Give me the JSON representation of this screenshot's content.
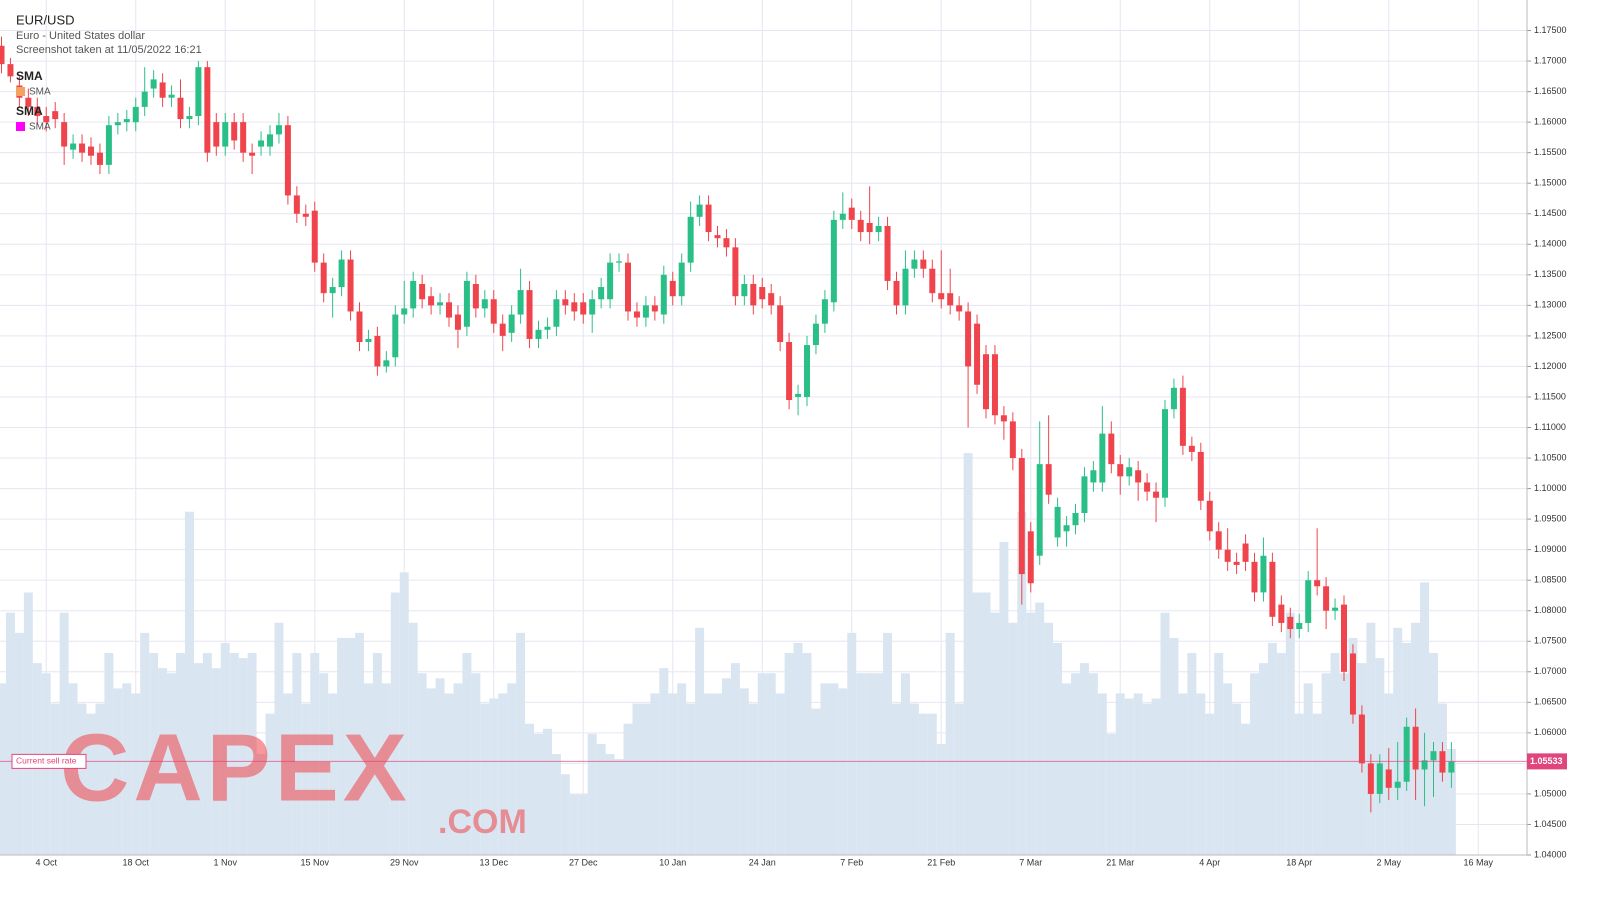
{
  "header": {
    "title": "EUR/USD",
    "subtitle": "Euro - United States dollar",
    "note": "Screenshot taken at 11/05/2022 16:21"
  },
  "indicators": [
    {
      "name": "SMA",
      "label": "SMA",
      "color": "#f4a261"
    },
    {
      "name": "SMA",
      "label": "SMA",
      "color": "#ff00ff"
    }
  ],
  "watermark": {
    "name": "CAPEX",
    "domain": ".COM"
  },
  "chart_data": {
    "type": "candlestick",
    "categories": [
      null,
      null,
      null,
      null,
      null,
      "4 Oct",
      null,
      null,
      null,
      null,
      null,
      null,
      null,
      null,
      null,
      "18 Oct",
      null,
      null,
      null,
      null,
      null,
      null,
      null,
      null,
      null,
      "1 Nov",
      null,
      null,
      null,
      null,
      null,
      null,
      null,
      null,
      null,
      "15 Nov",
      null,
      null,
      null,
      null,
      null,
      null,
      null,
      null,
      null,
      "29 Nov",
      null,
      null,
      null,
      null,
      null,
      null,
      null,
      null,
      null,
      "13 Dec",
      null,
      null,
      null,
      null,
      null,
      null,
      null,
      null,
      null,
      "27 Dec",
      null,
      null,
      null,
      null,
      null,
      null,
      null,
      null,
      null,
      "10 Jan",
      null,
      null,
      null,
      null,
      null,
      null,
      null,
      null,
      null,
      "24 Jan",
      null,
      null,
      null,
      null,
      null,
      null,
      null,
      null,
      null,
      "7 Feb",
      null,
      null,
      null,
      null,
      null,
      null,
      null,
      null,
      null,
      "21 Feb",
      null,
      null,
      null,
      null,
      null,
      null,
      null,
      null,
      null,
      "7 Mar",
      null,
      null,
      null,
      null,
      null,
      null,
      null,
      null,
      null,
      "21 Mar",
      null,
      null,
      null,
      null,
      null,
      null,
      null,
      null,
      null,
      "4 Apr",
      null,
      null,
      null,
      null,
      null,
      null,
      null,
      null,
      null,
      "18 Apr",
      null,
      null,
      null,
      null,
      null,
      null,
      null,
      null,
      null,
      "2 May",
      null,
      null,
      null,
      null,
      null,
      null,
      null,
      null,
      null,
      "16 May"
    ],
    "open": [
      1.1725,
      1.1695,
      1.166,
      1.164,
      1.1625,
      1.161,
      1.1618,
      1.16,
      1.1555,
      1.1565,
      1.156,
      1.155,
      1.153,
      1.1595,
      1.16,
      1.16,
      1.1625,
      1.1655,
      1.1665,
      1.164,
      1.164,
      1.1605,
      1.161,
      1.169,
      1.16,
      1.156,
      1.16,
      1.16,
      1.155,
      1.156,
      1.156,
      1.158,
      1.1595,
      1.148,
      1.145,
      1.1455,
      1.137,
      1.132,
      1.133,
      1.1375,
      1.129,
      1.124,
      1.125,
      1.12,
      1.1215,
      1.1285,
      1.1295,
      1.1335,
      1.1315,
      1.13,
      1.1305,
      1.1285,
      1.1265,
      1.1335,
      1.1295,
      1.131,
      1.127,
      1.1255,
      1.1285,
      1.1325,
      1.1245,
      1.126,
      1.1265,
      1.131,
      1.1305,
      1.1305,
      1.1285,
      1.131,
      1.131,
      1.137,
      1.137,
      1.129,
      1.128,
      1.13,
      1.1285,
      1.134,
      1.1315,
      1.137,
      1.1445,
      1.1465,
      1.1415,
      1.141,
      1.1395,
      1.1315,
      1.1335,
      1.133,
      1.132,
      1.13,
      1.124,
      1.115,
      1.115,
      1.1235,
      1.127,
      1.1305,
      1.144,
      1.146,
      1.144,
      1.1435,
      1.142,
      1.143,
      1.134,
      1.13,
      1.136,
      1.1375,
      1.136,
      1.132,
      1.132,
      1.13,
      1.129,
      1.127,
      1.122,
      1.122,
      1.112,
      1.111,
      1.105,
      1.093,
      1.089,
      1.104,
      1.092,
      1.093,
      1.094,
      1.096,
      1.101,
      1.101,
      1.109,
      1.104,
      1.102,
      1.103,
      1.101,
      1.0995,
      1.0985,
      1.113,
      1.1165,
      1.107,
      1.106,
      1.098,
      1.093,
      1.09,
      1.088,
      1.091,
      1.088,
      1.083,
      1.088,
      1.081,
      1.079,
      1.077,
      1.078,
      1.085,
      1.084,
      1.08,
      1.081,
      1.073,
      1.063,
      1.055,
      1.05,
      1.054,
      1.051,
      1.052,
      1.061,
      1.054,
      1.0555,
      1.057,
      1.0535,
      null,
      null,
      null
    ],
    "high": [
      1.174,
      1.1705,
      1.1675,
      1.1655,
      1.164,
      1.1625,
      1.1633,
      1.1615,
      1.158,
      1.158,
      1.1575,
      1.1565,
      1.161,
      1.1615,
      1.162,
      1.164,
      1.169,
      1.1685,
      1.168,
      1.166,
      1.167,
      1.1625,
      1.17,
      1.17,
      1.1615,
      1.1615,
      1.1615,
      1.1615,
      1.1565,
      1.1585,
      1.1595,
      1.1615,
      1.161,
      1.1495,
      1.1465,
      1.147,
      1.1385,
      1.1345,
      1.139,
      1.139,
      1.1305,
      1.126,
      1.1265,
      1.1225,
      1.13,
      1.134,
      1.1355,
      1.135,
      1.133,
      1.132,
      1.132,
      1.13,
      1.1355,
      1.135,
      1.1325,
      1.1325,
      1.1285,
      1.13,
      1.136,
      1.134,
      1.1275,
      1.128,
      1.1325,
      1.1325,
      1.132,
      1.132,
      1.1325,
      1.1345,
      1.1385,
      1.1385,
      1.1385,
      1.1305,
      1.1315,
      1.1315,
      1.1365,
      1.1355,
      1.1385,
      1.147,
      1.148,
      1.148,
      1.143,
      1.1425,
      1.141,
      1.135,
      1.135,
      1.1345,
      1.1335,
      1.1315,
      1.1255,
      1.117,
      1.125,
      1.1285,
      1.1325,
      1.1455,
      1.1485,
      1.1475,
      1.1455,
      1.1495,
      1.1445,
      1.1445,
      1.1355,
      1.139,
      1.139,
      1.139,
      1.1375,
      1.139,
      1.136,
      1.1315,
      1.1305,
      1.1285,
      1.1235,
      1.1235,
      1.1135,
      1.1125,
      1.1065,
      1.0945,
      1.111,
      1.112,
      1.0985,
      1.0955,
      1.0975,
      1.1035,
      1.1045,
      1.1135,
      1.111,
      1.1055,
      1.105,
      1.1045,
      1.1025,
      1.101,
      1.1145,
      1.118,
      1.1185,
      1.1085,
      1.1075,
      1.0995,
      1.0945,
      1.0935,
      1.0895,
      1.0925,
      1.0895,
      1.092,
      1.0895,
      1.0825,
      1.0805,
      1.0795,
      1.0865,
      1.0935,
      1.0855,
      1.082,
      1.0825,
      1.0745,
      1.0645,
      1.0565,
      1.0565,
      1.0575,
      1.0585,
      1.0625,
      1.064,
      1.06,
      1.0585,
      1.0585,
      1.0585,
      null,
      null,
      null
    ],
    "low": [
      1.168,
      1.1665,
      1.1625,
      1.161,
      1.1595,
      1.1585,
      1.159,
      1.153,
      1.154,
      1.1535,
      1.153,
      1.1515,
      1.1515,
      1.158,
      1.1585,
      1.1585,
      1.161,
      1.164,
      1.1625,
      1.1625,
      1.159,
      1.159,
      1.1595,
      1.1535,
      1.1545,
      1.1545,
      1.1555,
      1.1535,
      1.1515,
      1.1545,
      1.1545,
      1.1565,
      1.1465,
      1.1435,
      1.143,
      1.1355,
      1.1305,
      1.128,
      1.1315,
      1.1275,
      1.1225,
      1.1225,
      1.1185,
      1.119,
      1.12,
      1.127,
      1.128,
      1.1295,
      1.1285,
      1.1285,
      1.1265,
      1.123,
      1.125,
      1.128,
      1.128,
      1.1255,
      1.1225,
      1.124,
      1.127,
      1.123,
      1.123,
      1.1245,
      1.125,
      1.1285,
      1.1275,
      1.127,
      1.1255,
      1.1295,
      1.1295,
      1.1355,
      1.1275,
      1.1265,
      1.1265,
      1.1275,
      1.127,
      1.13,
      1.13,
      1.1355,
      1.143,
      1.1405,
      1.1395,
      1.138,
      1.13,
      1.13,
      1.1285,
      1.1295,
      1.1285,
      1.1225,
      1.113,
      1.112,
      1.1135,
      1.122,
      1.1255,
      1.129,
      1.1425,
      1.1425,
      1.1405,
      1.14,
      1.1405,
      1.1325,
      1.1285,
      1.1285,
      1.1345,
      1.1345,
      1.1305,
      1.1295,
      1.1285,
      1.1275,
      1.11,
      1.1155,
      1.1115,
      1.1105,
      1.108,
      1.103,
      1.081,
      1.083,
      1.0875,
      1.0975,
      1.0905,
      1.0905,
      1.0925,
      1.0945,
      1.0995,
      1.0995,
      1.1025,
      1.099,
      1.1005,
      1.098,
      1.098,
      1.0945,
      1.097,
      1.1115,
      1.1055,
      1.1045,
      1.0965,
      1.0915,
      1.0885,
      1.0865,
      1.086,
      1.0865,
      1.0815,
      1.0815,
      1.0775,
      1.0765,
      1.0755,
      1.0755,
      1.0765,
      1.0825,
      1.077,
      1.0785,
      1.0685,
      1.0615,
      1.0535,
      1.047,
      1.0485,
      1.049,
      1.049,
      1.0505,
      1.049,
      1.048,
      1.0495,
      1.052,
      1.051,
      null,
      null,
      null
    ],
    "close": [
      1.1695,
      1.1675,
      1.164,
      1.1625,
      1.161,
      1.16,
      1.1605,
      1.156,
      1.1565,
      1.155,
      1.1545,
      1.153,
      1.1595,
      1.16,
      1.1605,
      1.1625,
      1.165,
      1.167,
      1.164,
      1.1645,
      1.1605,
      1.161,
      1.169,
      1.155,
      1.156,
      1.16,
      1.157,
      1.155,
      1.1545,
      1.157,
      1.158,
      1.1595,
      1.148,
      1.145,
      1.1445,
      1.137,
      1.132,
      1.133,
      1.1375,
      1.129,
      1.124,
      1.1245,
      1.12,
      1.121,
      1.1285,
      1.1295,
      1.134,
      1.131,
      1.13,
      1.1305,
      1.128,
      1.126,
      1.134,
      1.1295,
      1.131,
      1.127,
      1.125,
      1.1285,
      1.1325,
      1.1245,
      1.126,
      1.1265,
      1.131,
      1.13,
      1.129,
      1.1285,
      1.131,
      1.133,
      1.137,
      1.1372,
      1.129,
      1.128,
      1.13,
      1.129,
      1.135,
      1.1315,
      1.137,
      1.1445,
      1.1465,
      1.142,
      1.141,
      1.1395,
      1.1315,
      1.1335,
      1.13,
      1.131,
      1.13,
      1.124,
      1.1145,
      1.1155,
      1.1235,
      1.127,
      1.131,
      1.144,
      1.145,
      1.144,
      1.142,
      1.142,
      1.143,
      1.134,
      1.13,
      1.136,
      1.1375,
      1.136,
      1.132,
      1.131,
      1.13,
      1.129,
      1.12,
      1.117,
      1.113,
      1.112,
      1.111,
      1.105,
      1.086,
      1.0845,
      1.104,
      1.099,
      1.097,
      1.094,
      1.096,
      1.102,
      1.103,
      1.109,
      1.104,
      1.102,
      1.1035,
      1.101,
      1.0995,
      1.0985,
      1.113,
      1.1165,
      1.107,
      1.106,
      1.098,
      1.093,
      1.09,
      1.088,
      1.0875,
      1.088,
      1.083,
      1.089,
      1.079,
      1.078,
      1.077,
      1.078,
      1.085,
      1.084,
      1.08,
      1.0805,
      1.07,
      1.063,
      1.055,
      1.05,
      1.055,
      1.051,
      1.052,
      1.061,
      1.054,
      1.0555,
      1.057,
      1.0535,
      1.0553,
      null,
      null,
      null
    ],
    "volume": [
      170,
      240,
      220,
      260,
      190,
      180,
      150,
      240,
      170,
      150,
      140,
      150,
      200,
      165,
      170,
      160,
      220,
      200,
      185,
      180,
      200,
      340,
      190,
      200,
      185,
      210,
      200,
      195,
      200,
      100,
      140,
      230,
      160,
      200,
      150,
      200,
      180,
      160,
      215,
      215,
      220,
      170,
      200,
      170,
      260,
      280,
      230,
      180,
      165,
      175,
      160,
      170,
      200,
      180,
      150,
      155,
      160,
      170,
      220,
      130,
      120,
      125,
      100,
      80,
      60,
      60,
      120,
      110,
      100,
      95,
      130,
      150,
      150,
      160,
      185,
      160,
      170,
      150,
      225,
      160,
      160,
      175,
      190,
      165,
      150,
      180,
      180,
      160,
      200,
      210,
      200,
      145,
      170,
      170,
      165,
      220,
      180,
      180,
      180,
      220,
      150,
      180,
      150,
      140,
      140,
      110,
      220,
      150,
      398,
      260,
      260,
      240,
      310,
      230,
      340,
      240,
      250,
      230,
      210,
      170,
      180,
      190,
      180,
      160,
      120,
      160,
      155,
      160,
      150,
      155,
      240,
      215,
      160,
      200,
      160,
      140,
      200,
      170,
      150,
      130,
      180,
      190,
      210,
      200,
      240,
      140,
      170,
      140,
      180,
      200,
      180,
      215,
      190,
      230,
      195,
      160,
      225,
      210,
      230,
      270,
      200,
      150,
      105,
      null,
      null,
      null
    ],
    "up_color": "#2bbf88",
    "down_color": "#f0444c",
    "volume_color": "#d9e5f0",
    "ylim": [
      1.04,
      1.18
    ],
    "yticks": [
      {
        "value": 1.04,
        "label": "1.04000"
      },
      {
        "value": 1.045,
        "label": "1.04500"
      },
      {
        "value": 1.05,
        "label": "1.05000"
      },
      {
        "value": 1.055,
        "label": "1.05500"
      },
      {
        "value": 1.06,
        "label": "1.06000"
      },
      {
        "value": 1.065,
        "label": "1.06500"
      },
      {
        "value": 1.07,
        "label": "1.07000"
      },
      {
        "value": 1.075,
        "label": "1.07500"
      },
      {
        "value": 1.08,
        "label": "1.08000"
      },
      {
        "value": 1.085,
        "label": "1.08500"
      },
      {
        "value": 1.09,
        "label": "1.09000"
      },
      {
        "value": 1.095,
        "label": "1.09500"
      },
      {
        "value": 1.1,
        "label": "1.10000"
      },
      {
        "value": 1.105,
        "label": "1.10500"
      },
      {
        "value": 1.11,
        "label": "1.11000"
      },
      {
        "value": 1.115,
        "label": "1.11500"
      },
      {
        "value": 1.12,
        "label": "1.12000"
      },
      {
        "value": 1.125,
        "label": "1.12500"
      },
      {
        "value": 1.13,
        "label": "1.13000"
      },
      {
        "value": 1.135,
        "label": "1.13500"
      },
      {
        "value": 1.14,
        "label": "1.14000"
      },
      {
        "value": 1.145,
        "label": "1.14500"
      },
      {
        "value": 1.15,
        "label": "1.15000"
      },
      {
        "value": 1.155,
        "label": "1.15500"
      },
      {
        "value": 1.16,
        "label": "1.16000"
      },
      {
        "value": 1.165,
        "label": "1.16500"
      },
      {
        "value": 1.17,
        "label": "1.17000"
      },
      {
        "value": 1.175,
        "label": "1.17500"
      }
    ],
    "grid": true,
    "current_rate": {
      "label": "Current sell rate",
      "value": 1.05533,
      "color": "#e0457b"
    }
  }
}
